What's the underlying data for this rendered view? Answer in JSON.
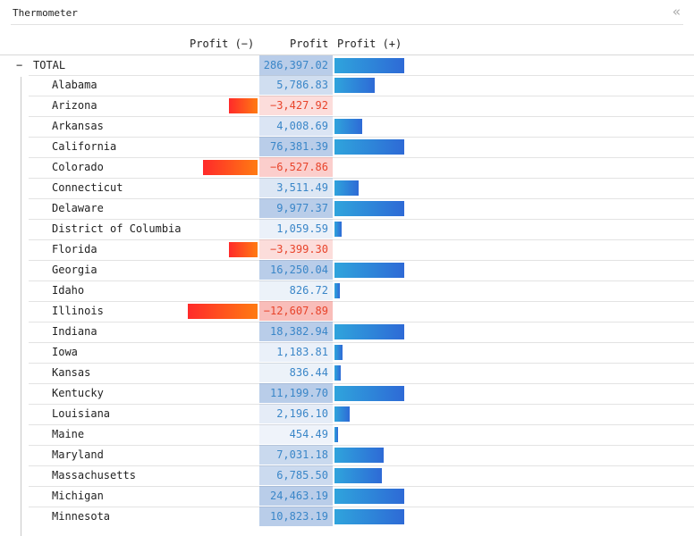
{
  "panel": {
    "title": "Thermometer"
  },
  "headers": {
    "neg": "Profit (−)",
    "val": "Profit",
    "pos": "Profit (+)"
  },
  "colors": {
    "positive_text": "#3a86c8",
    "negative_text": "#e8442b",
    "pos_bar": [
      "#2fa4dc",
      "#2e6ad6"
    ],
    "neg_bar": [
      "#ff2a2a",
      "#ff7b12"
    ]
  },
  "rows": [
    {
      "label": "TOTAL",
      "expander": "−",
      "value": 286397.02,
      "display": "286,397.02"
    },
    {
      "label": "Alabama",
      "value": 5786.83,
      "display": "5,786.83"
    },
    {
      "label": "Arizona",
      "value": -3427.92,
      "display": "−3,427.92"
    },
    {
      "label": "Arkansas",
      "value": 4008.69,
      "display": "4,008.69"
    },
    {
      "label": "California",
      "value": 76381.39,
      "display": "76,381.39"
    },
    {
      "label": "Colorado",
      "value": -6527.86,
      "display": "−6,527.86"
    },
    {
      "label": "Connecticut",
      "value": 3511.49,
      "display": "3,511.49"
    },
    {
      "label": "Delaware",
      "value": 9977.37,
      "display": "9,977.37"
    },
    {
      "label": "District of Columbia",
      "value": 1059.59,
      "display": "1,059.59"
    },
    {
      "label": "Florida",
      "value": -3399.3,
      "display": "−3,399.30"
    },
    {
      "label": "Georgia",
      "value": 16250.04,
      "display": "16,250.04"
    },
    {
      "label": "Idaho",
      "value": 826.72,
      "display": "826.72"
    },
    {
      "label": "Illinois",
      "value": -12607.89,
      "display": "−12,607.89"
    },
    {
      "label": "Indiana",
      "value": 18382.94,
      "display": "18,382.94"
    },
    {
      "label": "Iowa",
      "value": 1183.81,
      "display": "1,183.81"
    },
    {
      "label": "Kansas",
      "value": 836.44,
      "display": "836.44"
    },
    {
      "label": "Kentucky",
      "value": 11199.7,
      "display": "11,199.70"
    },
    {
      "label": "Louisiana",
      "value": 2196.1,
      "display": "2,196.10"
    },
    {
      "label": "Maine",
      "value": 454.49,
      "display": "454.49"
    },
    {
      "label": "Maryland",
      "value": 7031.18,
      "display": "7,031.18"
    },
    {
      "label": "Massachusetts",
      "value": 6785.5,
      "display": "6,785.50"
    },
    {
      "label": "Michigan",
      "value": 24463.19,
      "display": "24,463.19"
    },
    {
      "label": "Minnesota",
      "value": 10823.19,
      "display": "10,823.19"
    }
  ]
}
